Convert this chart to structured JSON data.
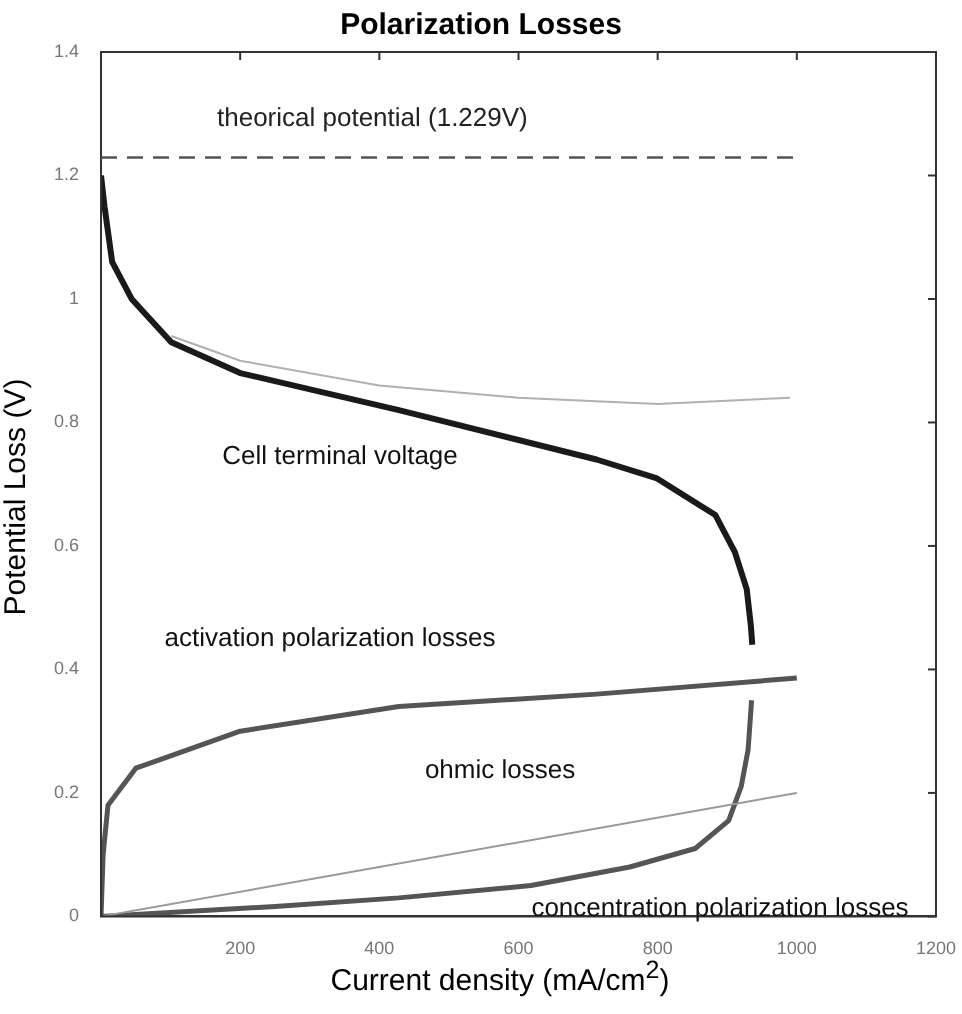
{
  "chart_data": {
    "type": "line",
    "title": "Polarization Losses",
    "xlabel": "Current density (mA/cm$^{2}$)",
    "ylabel": "Potential Loss (V)",
    "xlim": [
      0,
      1200
    ],
    "xticks": [
      {
        "value": 0,
        "label": null
      },
      200,
      400,
      600,
      800,
      1000,
      1200
    ],
    "ylim": [
      0,
      1.4
    ],
    "yticks": [
      0,
      0.2,
      0.4,
      0.6,
      0.8,
      1,
      1.2,
      1.4
    ],
    "grid": false,
    "legend": false,
    "marker": "none",
    "series": [
      {
        "name": "Cell terminal voltage",
        "color": "#1a1a1a",
        "x": [
          0,
          5,
          16,
          44,
          101,
          200,
          428,
          712,
          798,
          883,
          911,
          928,
          934,
          936
        ],
        "values": [
          1.2,
          1.15,
          1.06,
          1.0,
          0.93,
          0.88,
          0.82,
          0.74,
          0.71,
          0.65,
          0.59,
          0.53,
          0.47,
          0.44
        ]
      },
      {
        "color": "#b0b0b0",
        "x": [
          101,
          200,
          400,
          600,
          800,
          990
        ],
        "values": [
          0.94,
          0.9,
          0.86,
          0.84,
          0.83,
          0.84
        ]
      },
      {
        "name": "activation polarization losses",
        "color": "#555555",
        "x": [
          0,
          3,
          10,
          50,
          100,
          200,
          428,
          712,
          1000
        ],
        "values": [
          0,
          0.1,
          0.18,
          0.24,
          0.26,
          0.3,
          0.34,
          0.36,
          0.386
        ]
      },
      {
        "name": "ohmic losses",
        "color": "#999999",
        "x": [
          0,
          1000
        ],
        "values": [
          0,
          0.2
        ]
      },
      {
        "name": "concentration polarization losses",
        "color": "#555555",
        "x": [
          0,
          250,
          428,
          618,
          760,
          854,
          902,
          920,
          930,
          935
        ],
        "values": [
          0,
          0.016,
          0.03,
          0.05,
          0.08,
          0.11,
          0.155,
          0.21,
          0.27,
          0.35
        ]
      }
    ],
    "ref_lines": [
      {
        "axis": "y",
        "value": 1.229,
        "label": "theorical potential (1.229V)",
        "color": "#555555",
        "line_style": "dashed"
      }
    ]
  }
}
